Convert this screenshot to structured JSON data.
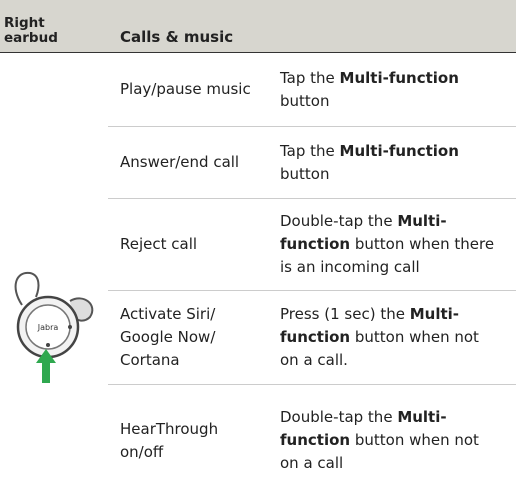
{
  "header": {
    "left": "Right earbud",
    "right": "Calls & music"
  },
  "image": {
    "brand": "Jabra"
  },
  "rows": [
    {
      "function": "Play/pause music",
      "action": [
        {
          "text": "Tap the "
        },
        {
          "text": "Multi-function",
          "bold": true
        },
        {
          "text": " button"
        }
      ]
    },
    {
      "function": "Answer/end call",
      "action": [
        {
          "text": "Tap the "
        },
        {
          "text": "Multi-function",
          "bold": true
        },
        {
          "text": " button"
        }
      ]
    },
    {
      "function": "Reject call",
      "action": [
        {
          "text": "Double-tap the "
        },
        {
          "text": "Multi-function",
          "bold": true
        },
        {
          "text": " button when there is an incoming call"
        }
      ]
    },
    {
      "function": "Activate Siri/ Google Now/ Cortana",
      "action": [
        {
          "text": "Press (1 sec) the "
        },
        {
          "text": "Multi-function",
          "bold": true
        },
        {
          "text": " button when not on a call."
        }
      ]
    },
    {
      "function": "HearThrough on/off",
      "action": [
        {
          "text": "Double-tap the "
        },
        {
          "text": "Multi-function",
          "bold": true
        },
        {
          "text": " button when not on a call"
        }
      ]
    }
  ]
}
